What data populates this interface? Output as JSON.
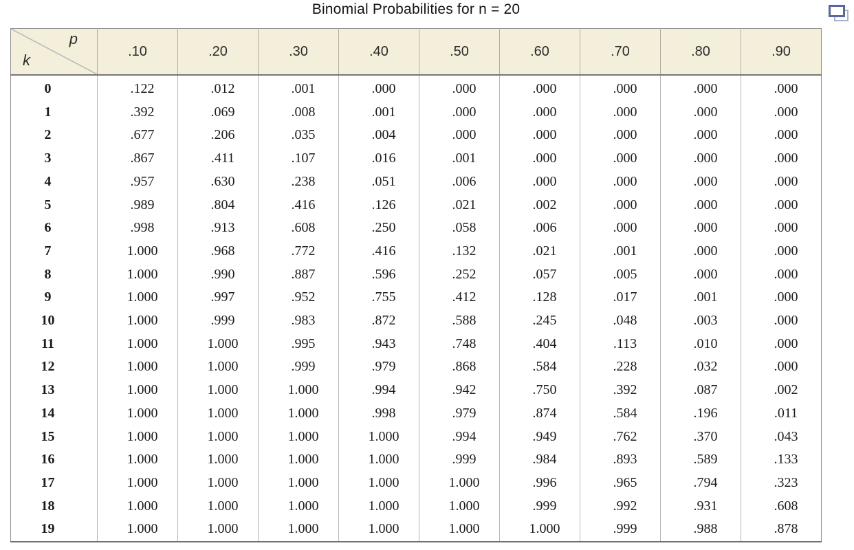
{
  "title": "Binomial Probabilities for n = 20",
  "icon": {
    "name": "duplicate-window-icon"
  },
  "colors": {
    "header_bg": "#f4efda",
    "outer_border": "#8f8f8f",
    "bottom_border": "#6f6f6f",
    "head_bottom": "#767676",
    "header_divider": "#b2ad9c",
    "col_divider": "#b4b4b4",
    "diagonal": "#b9b9b9",
    "icon_front": "#5767a4",
    "icon_back": "#a9b1cf"
  },
  "chart_data": {
    "type": "table",
    "title": "Binomial Probabilities for n = 20",
    "corner_top_right": "p",
    "corner_bottom_left": "k",
    "columns": [
      ".10",
      ".20",
      ".30",
      ".40",
      ".50",
      ".60",
      ".70",
      ".80",
      ".90"
    ],
    "rows": [
      {
        "k": "0",
        "values": [
          ".122",
          ".012",
          ".001",
          ".000",
          ".000",
          ".000",
          ".000",
          ".000",
          ".000"
        ]
      },
      {
        "k": "1",
        "values": [
          ".392",
          ".069",
          ".008",
          ".001",
          ".000",
          ".000",
          ".000",
          ".000",
          ".000"
        ]
      },
      {
        "k": "2",
        "values": [
          ".677",
          ".206",
          ".035",
          ".004",
          ".000",
          ".000",
          ".000",
          ".000",
          ".000"
        ]
      },
      {
        "k": "3",
        "values": [
          ".867",
          ".411",
          ".107",
          ".016",
          ".001",
          ".000",
          ".000",
          ".000",
          ".000"
        ]
      },
      {
        "k": "4",
        "values": [
          ".957",
          ".630",
          ".238",
          ".051",
          ".006",
          ".000",
          ".000",
          ".000",
          ".000"
        ]
      },
      {
        "k": "5",
        "values": [
          ".989",
          ".804",
          ".416",
          ".126",
          ".021",
          ".002",
          ".000",
          ".000",
          ".000"
        ]
      },
      {
        "k": "6",
        "values": [
          ".998",
          ".913",
          ".608",
          ".250",
          ".058",
          ".006",
          ".000",
          ".000",
          ".000"
        ]
      },
      {
        "k": "7",
        "values": [
          "1.000",
          ".968",
          ".772",
          ".416",
          ".132",
          ".021",
          ".001",
          ".000",
          ".000"
        ]
      },
      {
        "k": "8",
        "values": [
          "1.000",
          ".990",
          ".887",
          ".596",
          ".252",
          ".057",
          ".005",
          ".000",
          ".000"
        ]
      },
      {
        "k": "9",
        "values": [
          "1.000",
          ".997",
          ".952",
          ".755",
          ".412",
          ".128",
          ".017",
          ".001",
          ".000"
        ]
      },
      {
        "k": "10",
        "values": [
          "1.000",
          ".999",
          ".983",
          ".872",
          ".588",
          ".245",
          ".048",
          ".003",
          ".000"
        ]
      },
      {
        "k": "11",
        "values": [
          "1.000",
          "1.000",
          ".995",
          ".943",
          ".748",
          ".404",
          ".113",
          ".010",
          ".000"
        ]
      },
      {
        "k": "12",
        "values": [
          "1.000",
          "1.000",
          ".999",
          ".979",
          ".868",
          ".584",
          ".228",
          ".032",
          ".000"
        ]
      },
      {
        "k": "13",
        "values": [
          "1.000",
          "1.000",
          "1.000",
          ".994",
          ".942",
          ".750",
          ".392",
          ".087",
          ".002"
        ]
      },
      {
        "k": "14",
        "values": [
          "1.000",
          "1.000",
          "1.000",
          ".998",
          ".979",
          ".874",
          ".584",
          ".196",
          ".011"
        ]
      },
      {
        "k": "15",
        "values": [
          "1.000",
          "1.000",
          "1.000",
          "1.000",
          ".994",
          ".949",
          ".762",
          ".370",
          ".043"
        ]
      },
      {
        "k": "16",
        "values": [
          "1.000",
          "1.000",
          "1.000",
          "1.000",
          ".999",
          ".984",
          ".893",
          ".589",
          ".133"
        ]
      },
      {
        "k": "17",
        "values": [
          "1.000",
          "1.000",
          "1.000",
          "1.000",
          "1.000",
          ".996",
          ".965",
          ".794",
          ".323"
        ]
      },
      {
        "k": "18",
        "values": [
          "1.000",
          "1.000",
          "1.000",
          "1.000",
          "1.000",
          ".999",
          ".992",
          ".931",
          ".608"
        ]
      },
      {
        "k": "19",
        "values": [
          "1.000",
          "1.000",
          "1.000",
          "1.000",
          "1.000",
          "1.000",
          ".999",
          ".988",
          ".878"
        ]
      }
    ]
  }
}
